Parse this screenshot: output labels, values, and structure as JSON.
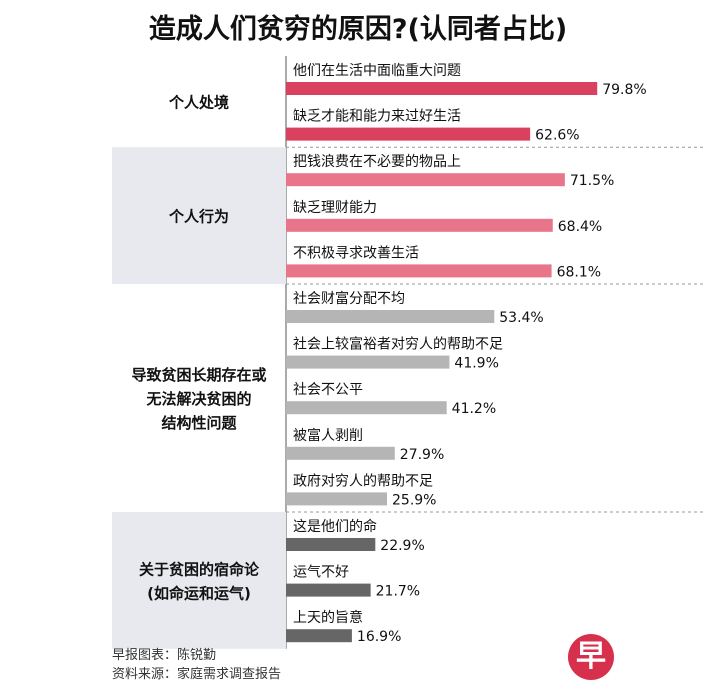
{
  "chart_data": {
    "type": "bar",
    "title": "造成人们贫穷的原因?(认同者占比)",
    "unit": "%",
    "groups": [
      {
        "label": [
          "个人处境"
        ],
        "color": "#d9415f",
        "shaded": false,
        "items": [
          {
            "label": "他们在生活中面临重大问题",
            "value": 79.8
          },
          {
            "label": "缺乏才能和能力来过好生活",
            "value": 62.6
          }
        ]
      },
      {
        "label": [
          "个人行为"
        ],
        "color": "#e8758a",
        "shaded": true,
        "items": [
          {
            "label": "把钱浪费在不必要的物品上",
            "value": 71.5
          },
          {
            "label": "缺乏理财能力",
            "value": 68.4
          },
          {
            "label": "不积极寻求改善生活",
            "value": 68.1
          }
        ]
      },
      {
        "label": [
          "导致贫困长期存在或",
          "无法解决贫困的",
          "结构性问题"
        ],
        "color": "#b5b5b5",
        "shaded": false,
        "items": [
          {
            "label": "社会财富分配不均",
            "value": 53.4
          },
          {
            "label": "社会上较富裕者对穷人的帮助不足",
            "value": 41.9
          },
          {
            "label": "社会不公平",
            "value": 41.2
          },
          {
            "label": "被富人剥削",
            "value": 27.9
          },
          {
            "label": "政府对穷人的帮助不足",
            "value": 25.9
          }
        ]
      },
      {
        "label": [
          "关于贫困的宿命论",
          "(如命运和运气)"
        ],
        "color": "#666666",
        "shaded": true,
        "items": [
          {
            "label": "这是他们的命",
            "value": 22.9
          },
          {
            "label": "运气不好",
            "value": 21.7
          },
          {
            "label": "上天的旨意",
            "value": 16.9
          }
        ]
      }
    ]
  },
  "footer": {
    "credit": "早报图表：陈锐勤",
    "source": "资料来源：家庭需求调查报告"
  },
  "logo": {
    "glyph": "早",
    "color": "#d6304d"
  }
}
